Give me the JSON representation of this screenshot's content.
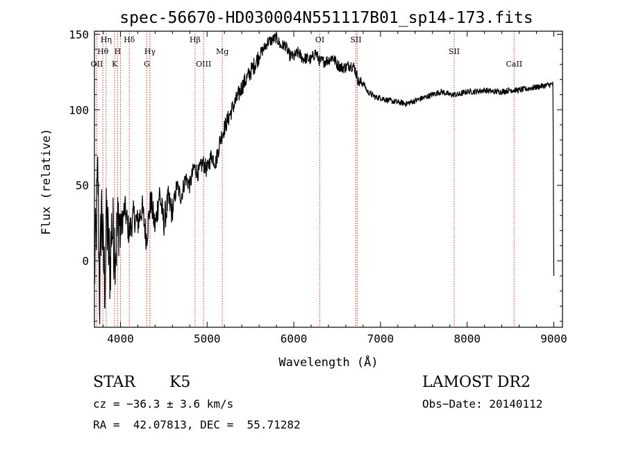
{
  "chart_data": {
    "type": "line",
    "title": "spec-56670-HD030004N551117B01_sp14-173.fits",
    "xlabel": "Wavelength (Å)",
    "ylabel": "Flux (relative)",
    "xlim": [
      3700,
      9100
    ],
    "ylim": [
      -44,
      152
    ],
    "x_ticks": [
      4000,
      5000,
      6000,
      7000,
      8000,
      9000
    ],
    "y_ticks": [
      0,
      50,
      100,
      150
    ],
    "grid": false,
    "series": [
      {
        "color": "#000000",
        "x": [
          3700,
          3720,
          3740,
          3760,
          3780,
          3800,
          3820,
          3840,
          3860,
          3880,
          3900,
          3920,
          3950,
          3980,
          4000,
          4050,
          4100,
          4150,
          4200,
          4250,
          4300,
          4350,
          4400,
          4450,
          4500,
          4550,
          4600,
          4650,
          4700,
          4750,
          4800,
          4850,
          4900,
          4950,
          5000,
          5050,
          5100,
          5150,
          5200,
          5250,
          5300,
          5350,
          5400,
          5450,
          5500,
          5550,
          5600,
          5650,
          5700,
          5750,
          5800,
          5850,
          5900,
          5950,
          6000,
          6050,
          6100,
          6150,
          6200,
          6250,
          6300,
          6350,
          6400,
          6450,
          6500,
          6550,
          6600,
          6650,
          6700,
          6750,
          6800,
          6850,
          6900,
          6950,
          7000,
          7100,
          7200,
          7300,
          7400,
          7500,
          7600,
          7700,
          7800,
          7900,
          8000,
          8100,
          8200,
          8300,
          8400,
          8500,
          8600,
          8700,
          8800,
          8900,
          8990,
          9000
        ],
        "y": [
          -10,
          20,
          60,
          -30,
          40,
          5,
          -15,
          30,
          10,
          -5,
          25,
          15,
          10,
          30,
          20,
          35,
          18,
          30,
          25,
          35,
          15,
          40,
          22,
          45,
          25,
          40,
          32,
          50,
          42,
          55,
          50,
          62,
          58,
          65,
          60,
          70,
          65,
          80,
          88,
          95,
          102,
          108,
          115,
          120,
          125,
          130,
          136,
          140,
          145,
          146,
          148,
          142,
          143,
          136,
          135,
          138,
          134,
          134,
          133,
          138,
          132,
          132,
          133,
          135,
          130,
          128,
          128,
          130,
          128,
          118,
          118,
          112,
          110,
          108,
          108,
          106,
          105,
          104,
          106,
          108,
          110,
          112,
          110,
          110,
          112,
          112,
          113,
          112,
          112,
          113,
          113,
          114,
          115,
          116,
          117,
          -10
        ]
      }
    ],
    "lines": [
      {
        "label": "OII",
        "x": 3727,
        "row": 3
      },
      {
        "label": "Hθ",
        "x": 3797,
        "row": 2
      },
      {
        "label": "Hη",
        "x": 3835,
        "row": 1
      },
      {
        "label": "H",
        "x": 3968,
        "row": 2
      },
      {
        "label": "K",
        "x": 3933,
        "row": 3
      },
      {
        "label": "Hδ",
        "x": 4102,
        "row": 1
      },
      {
        "label": "Hγ",
        "x": 4340,
        "row": 2
      },
      {
        "label": "G",
        "x": 4305,
        "row": 3
      },
      {
        "label": "Hβ",
        "x": 4861,
        "row": 1
      },
      {
        "label": "OIII",
        "x": 4959,
        "row": 3
      },
      {
        "label": "Mg",
        "x": 5175,
        "row": 2
      },
      {
        "label": "OI",
        "x": 6300,
        "row": 1
      },
      {
        "label": "SII",
        "x": 6716,
        "row": 1
      },
      {
        "label": "SII",
        "x": 7850,
        "row": 2
      },
      {
        "label": "CaII",
        "x": 8542,
        "row": 3
      }
    ],
    "extra_line_x": [
      4000,
      4340,
      6731
    ]
  },
  "info": {
    "object_class": "STAR",
    "subclass": "K5",
    "survey": "LAMOST DR2",
    "cz": "cz = −36.3 ± 3.6 km/s",
    "obs_date": "Obs−Date: 20140112",
    "radec": "RA =  42.07813, DEC =  55.71282"
  }
}
